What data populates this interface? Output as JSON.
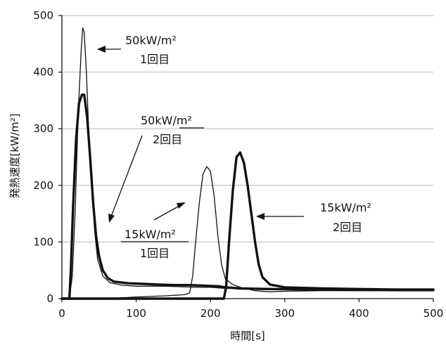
{
  "chart_data": {
    "type": "line",
    "xlabel": "時間[s]",
    "ylabel": "発熱速度[kW/m²]",
    "xlim": [
      0,
      500
    ],
    "ylim": [
      0,
      500
    ],
    "xticks": [
      0,
      100,
      200,
      300,
      400,
      500
    ],
    "yticks": [
      0,
      100,
      200,
      300,
      400,
      500
    ],
    "grid": true,
    "series": [
      {
        "name": "50kW/m² 1回目",
        "weight": "thin",
        "points": [
          [
            0,
            0
          ],
          [
            10,
            0
          ],
          [
            14,
            40
          ],
          [
            18,
            160
          ],
          [
            22,
            330
          ],
          [
            26,
            440
          ],
          [
            28,
            478
          ],
          [
            30,
            470
          ],
          [
            33,
            400
          ],
          [
            36,
            300
          ],
          [
            40,
            200
          ],
          [
            44,
            120
          ],
          [
            48,
            70
          ],
          [
            55,
            40
          ],
          [
            65,
            28
          ],
          [
            80,
            24
          ],
          [
            100,
            22
          ],
          [
            120,
            22
          ],
          [
            140,
            22
          ],
          [
            160,
            21
          ],
          [
            180,
            20
          ],
          [
            200,
            20
          ],
          [
            220,
            18
          ],
          [
            250,
            18
          ],
          [
            300,
            17
          ],
          [
            400,
            16
          ],
          [
            500,
            15
          ]
        ]
      },
      {
        "name": "50kW/m² 2回目",
        "weight": "thick",
        "points": [
          [
            0,
            0
          ],
          [
            10,
            0
          ],
          [
            12,
            50
          ],
          [
            15,
            160
          ],
          [
            19,
            280
          ],
          [
            23,
            345
          ],
          [
            27,
            360
          ],
          [
            30,
            360
          ],
          [
            34,
            320
          ],
          [
            38,
            250
          ],
          [
            42,
            170
          ],
          [
            46,
            110
          ],
          [
            50,
            75
          ],
          [
            55,
            50
          ],
          [
            62,
            36
          ],
          [
            70,
            30
          ],
          [
            90,
            27
          ],
          [
            110,
            26
          ],
          [
            130,
            25
          ],
          [
            150,
            24
          ],
          [
            170,
            24
          ],
          [
            190,
            23
          ],
          [
            210,
            22
          ],
          [
            220,
            20
          ],
          [
            240,
            18
          ],
          [
            280,
            17
          ],
          [
            350,
            16
          ],
          [
            450,
            15
          ],
          [
            500,
            15
          ]
        ]
      },
      {
        "name": "15kW/m² 1回目",
        "weight": "thin",
        "points": [
          [
            0,
            0
          ],
          [
            60,
            0
          ],
          [
            100,
            3
          ],
          [
            140,
            5
          ],
          [
            165,
            7
          ],
          [
            172,
            10
          ],
          [
            176,
            40
          ],
          [
            180,
            100
          ],
          [
            185,
            170
          ],
          [
            190,
            220
          ],
          [
            195,
            233
          ],
          [
            200,
            225
          ],
          [
            205,
            180
          ],
          [
            210,
            110
          ],
          [
            215,
            60
          ],
          [
            220,
            35
          ],
          [
            230,
            25
          ],
          [
            240,
            20
          ],
          [
            260,
            14
          ],
          [
            280,
            12
          ],
          [
            300,
            13
          ],
          [
            350,
            14
          ],
          [
            400,
            14
          ],
          [
            450,
            14
          ],
          [
            500,
            14
          ]
        ]
      },
      {
        "name": "15kW/m² 2回目",
        "weight": "thick",
        "points": [
          [
            0,
            0
          ],
          [
            190,
            0
          ],
          [
            218,
            0
          ],
          [
            221,
            20
          ],
          [
            225,
            100
          ],
          [
            230,
            190
          ],
          [
            235,
            250
          ],
          [
            240,
            258
          ],
          [
            245,
            240
          ],
          [
            250,
            200
          ],
          [
            255,
            150
          ],
          [
            260,
            100
          ],
          [
            265,
            60
          ],
          [
            270,
            38
          ],
          [
            280,
            25
          ],
          [
            300,
            20
          ],
          [
            350,
            18
          ],
          [
            400,
            17
          ],
          [
            450,
            16
          ],
          [
            500,
            16
          ]
        ]
      }
    ],
    "annotations": [
      {
        "line1": "50kW/m²",
        "line2": "1回目"
      },
      {
        "line1": "50kW/m²",
        "line2": "2回目"
      },
      {
        "line1": "15kW/m²",
        "line2": "1回目"
      },
      {
        "line1": "15kW/m²",
        "line2": "2回目"
      }
    ]
  }
}
